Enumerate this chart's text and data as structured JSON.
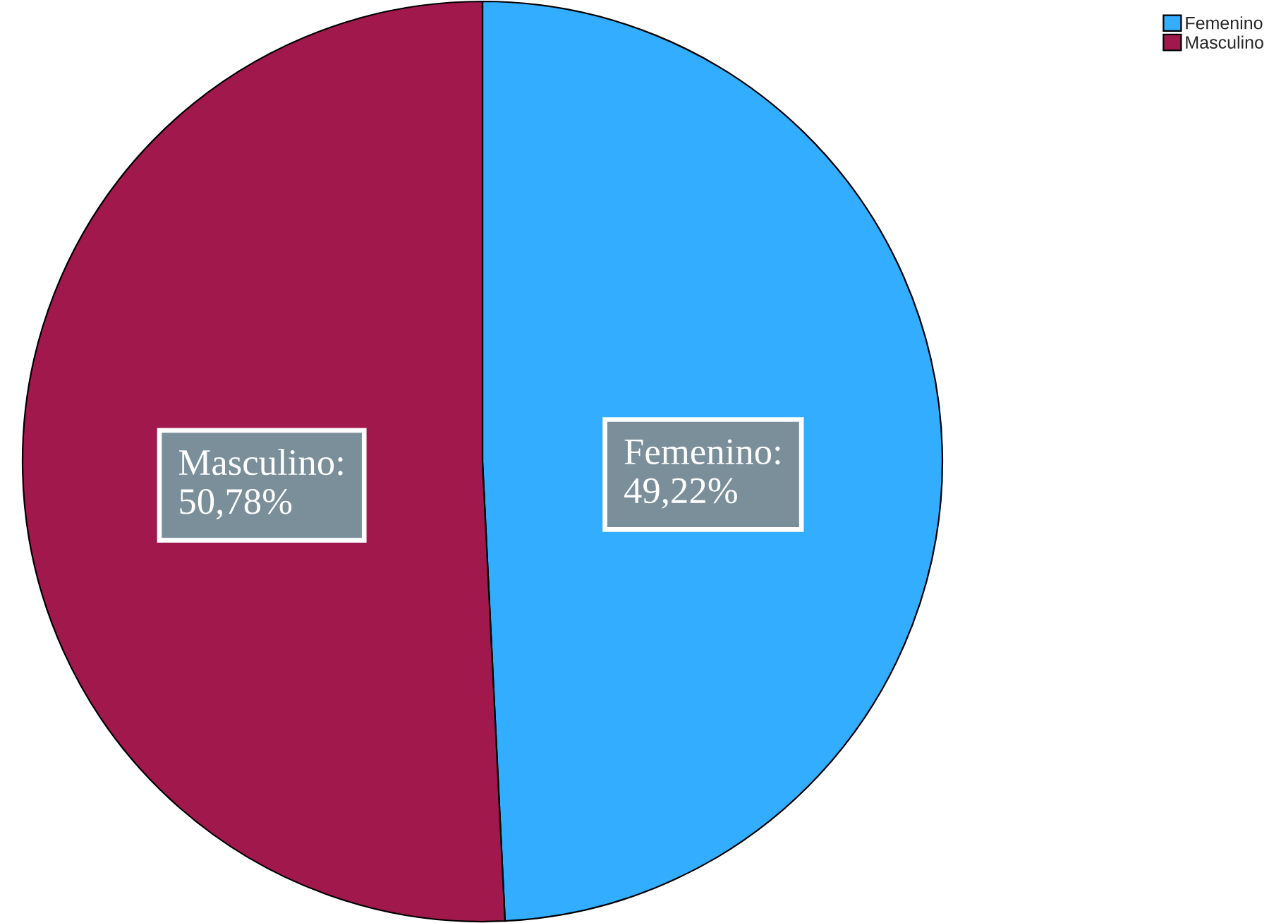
{
  "chart_data": {
    "type": "pie",
    "categories": [
      "Femenino",
      "Masculino"
    ],
    "values": [
      49.22,
      50.78
    ],
    "colors": [
      "#33adff",
      "#a0184c"
    ],
    "value_labels": [
      "Femenino:\n49,22%",
      "Masculino:\n50,78%"
    ],
    "legend": "top right"
  }
}
